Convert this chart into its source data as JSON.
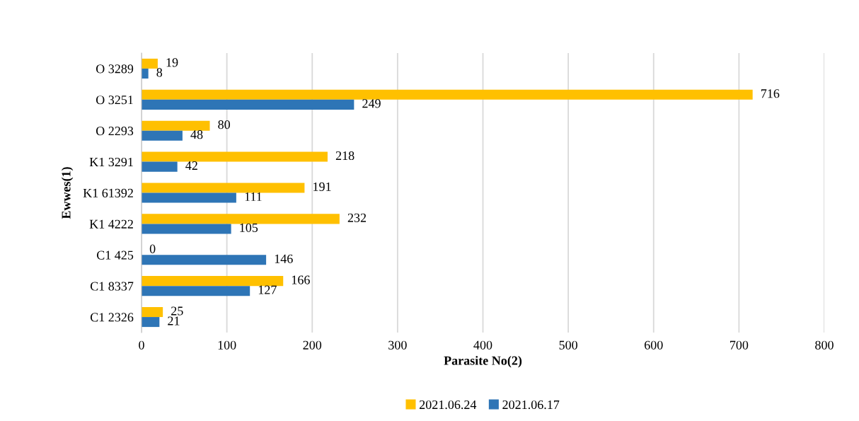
{
  "chart_data": {
    "type": "bar",
    "orientation": "horizontal",
    "xlabel": "Parasite No(2)",
    "ylabel": "Ewwes(1)",
    "categories": [
      "O 3289",
      "O 3251",
      "O 2293",
      "K1 3291",
      "K1 61392",
      "K1 4222",
      "C1 425",
      "C1 8337",
      "C1 2326"
    ],
    "series": [
      {
        "name": "2021.06.24",
        "color": "#ffc000",
        "values": [
          19,
          716,
          80,
          218,
          191,
          232,
          0,
          166,
          25
        ]
      },
      {
        "name": "2021.06.17",
        "color": "#2e75b6",
        "values": [
          8,
          249,
          48,
          42,
          111,
          105,
          146,
          127,
          21
        ]
      }
    ],
    "xlim": [
      0,
      800
    ],
    "xticks": [
      0,
      100,
      200,
      300,
      400,
      500,
      600,
      700,
      800
    ],
    "grid": "x",
    "legend": "bottom",
    "data_labels": true
  }
}
